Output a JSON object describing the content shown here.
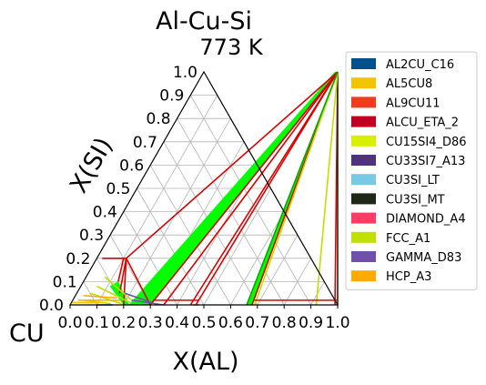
{
  "chart_data": {
    "type": "scatter",
    "title": "Al-Cu-Si",
    "subtitle": "773  K",
    "xlabel": "X(AL)",
    "ylabel": "X(SI)",
    "corner_label": "CU",
    "xlim": [
      0,
      1
    ],
    "ylim": [
      0,
      1
    ],
    "grid": true,
    "legend_position": "right",
    "x_ticks": [
      "0.0",
      "0.1",
      "0.2",
      "0.3",
      "0.4",
      "0.5",
      "0.6",
      "0.7",
      "0.8",
      "0.9",
      "1.0"
    ],
    "y_ticks": [
      "0.0",
      "0.1",
      "0.2",
      "0.3",
      "0.4",
      "0.5",
      "0.6",
      "0.7",
      "0.8",
      "0.9",
      "1.0"
    ],
    "legend": [
      {
        "name": "AL2CU_C16",
        "color": "#00508c"
      },
      {
        "name": "AL5CU8",
        "color": "#f2c500"
      },
      {
        "name": "AL9CU11",
        "color": "#f03c1e"
      },
      {
        "name": "ALCU_ETA_2",
        "color": "#c00020"
      },
      {
        "name": "CU15SI4_D86",
        "color": "#d7f000"
      },
      {
        "name": "CU33SI7_A13",
        "color": "#50327a"
      },
      {
        "name": "CU3SI_LT",
        "color": "#78c8e6"
      },
      {
        "name": "CU3SI_MT",
        "color": "#1e2814"
      },
      {
        "name": "DIAMOND_A4",
        "color": "#ff3c64"
      },
      {
        "name": "FCC_A1",
        "color": "#c0e000"
      },
      {
        "name": "GAMMA_D83",
        "color": "#7050aa"
      },
      {
        "name": "HCP_A3",
        "color": "#ffaa00"
      }
    ],
    "regions": [
      {
        "phase": "FCC_A1",
        "color": "#00ff00",
        "polygon": [
          [
            0.22,
            0.0
          ],
          [
            0.3,
            0.0
          ],
          [
            0.5,
            1.0
          ],
          [
            0.49,
            1.0
          ]
        ]
      },
      {
        "phase": "FCC_A1",
        "color": "#00ff00",
        "polygon": [
          [
            0.11,
            0.08
          ],
          [
            0.2,
            0.0
          ],
          [
            0.22,
            0.0
          ],
          [
            0.13,
            0.1
          ]
        ]
      },
      {
        "phase": "ALCU_ETA_2",
        "color": "#00ff00",
        "polygon": [
          [
            0.66,
            0.0
          ],
          [
            0.68,
            0.0
          ],
          [
            0.5,
            1.0
          ],
          [
            0.5,
            0.995
          ]
        ]
      }
    ],
    "tie_lines": [
      {
        "color": "#dd0000",
        "x1": 0.3,
        "y1": 0.0,
        "x2": 0.5,
        "y2": 1.0
      },
      {
        "color": "#dd0000",
        "x1": 0.35,
        "y1": 0.0,
        "x2": 0.5,
        "y2": 1.0
      },
      {
        "color": "#dd0000",
        "x1": 0.45,
        "y1": 0.0,
        "x2": 0.5,
        "y2": 1.0
      },
      {
        "color": "#dd0000",
        "x1": 0.47,
        "y1": 0.0,
        "x2": 0.5,
        "y2": 1.0
      },
      {
        "color": "#dd0000",
        "x1": 0.68,
        "y1": 0.0,
        "x2": 0.5,
        "y2": 1.0
      },
      {
        "color": "#dd0000",
        "x1": 0.99,
        "y1": 0.0,
        "x2": 0.5,
        "y2": 1.0
      },
      {
        "color": "#1e2814",
        "x1": 1.0,
        "y1": 0.0,
        "x2": 0.5,
        "y2": 1.0
      },
      {
        "color": "#c0e000",
        "x1": 0.5,
        "y1": 1.0,
        "x2": 0.92,
        "y2": 0.0
      },
      {
        "color": "#c0e000",
        "x1": 0.5,
        "y1": 1.0,
        "x2": 0.69,
        "y2": 0.0
      },
      {
        "color": "#dd0000",
        "x1": 0.68,
        "y1": 0.02,
        "x2": 0.99,
        "y2": 0.02
      },
      {
        "color": "#dd0000",
        "x1": 0.3,
        "y1": 0.02,
        "x2": 0.47,
        "y2": 0.02
      },
      {
        "color": "#dd0000",
        "x1": 0.11,
        "y1": 0.2,
        "x2": 0.02,
        "y2": 0.2
      },
      {
        "color": "#dd0000",
        "x1": 0.11,
        "y1": 0.2,
        "x2": 0.2,
        "y2": 0.0
      },
      {
        "color": "#dd0000",
        "x1": 0.11,
        "y1": 0.2,
        "x2": 0.3,
        "y2": 0.0
      },
      {
        "color": "#dd0000",
        "x1": 0.11,
        "y1": 0.2,
        "x2": 0.5,
        "y2": 1.0
      },
      {
        "color": "#dd0000",
        "x1": 0.1,
        "y1": 0.2,
        "x2": 0.13,
        "y2": 0.1
      },
      {
        "color": "#dd0000",
        "x1": 0.11,
        "y1": 0.2,
        "x2": 0.16,
        "y2": 0.05
      },
      {
        "color": "#c0e000",
        "x1": 0.07,
        "y1": 0.12,
        "x2": 0.22,
        "y2": 0.02
      },
      {
        "color": "#c0e000",
        "x1": 0.06,
        "y1": 0.08,
        "x2": 0.22,
        "y2": 0.01
      },
      {
        "color": "#c0e000",
        "x1": 0.05,
        "y1": 0.05,
        "x2": 0.19,
        "y2": 0.005
      },
      {
        "color": "#c0e000",
        "x1": 0.04,
        "y1": 0.02,
        "x2": 0.15,
        "y2": 0.005
      },
      {
        "color": "#ffaa00",
        "x1": 0.02,
        "y1": 0.02,
        "x2": 0.18,
        "y2": 0.02
      },
      {
        "color": "#ffaa00",
        "x1": 0.03,
        "y1": 0.04,
        "x2": 0.16,
        "y2": 0.03
      },
      {
        "color": "#7050aa",
        "x1": 0.22,
        "y1": 0.02,
        "x2": 0.35,
        "y2": 0.0
      },
      {
        "color": "#7050aa",
        "x1": 0.18,
        "y1": 0.05,
        "x2": 0.3,
        "y2": 0.01
      },
      {
        "color": "#00508c",
        "x1": 0.1,
        "y1": 0.0,
        "x2": 0.16,
        "y2": 0.0
      },
      {
        "color": "#f2c500",
        "x1": 0.0,
        "y1": 0.01,
        "x2": 0.12,
        "y2": 0.01
      },
      {
        "color": "#00aa00",
        "x1": 0.5,
        "y1": 1.0,
        "x2": 0.66,
        "y2": 0.0
      },
      {
        "color": "#ff3c64",
        "x1": 0.46,
        "y1": 0.0,
        "x2": 0.48,
        "y2": 0.0
      }
    ]
  }
}
